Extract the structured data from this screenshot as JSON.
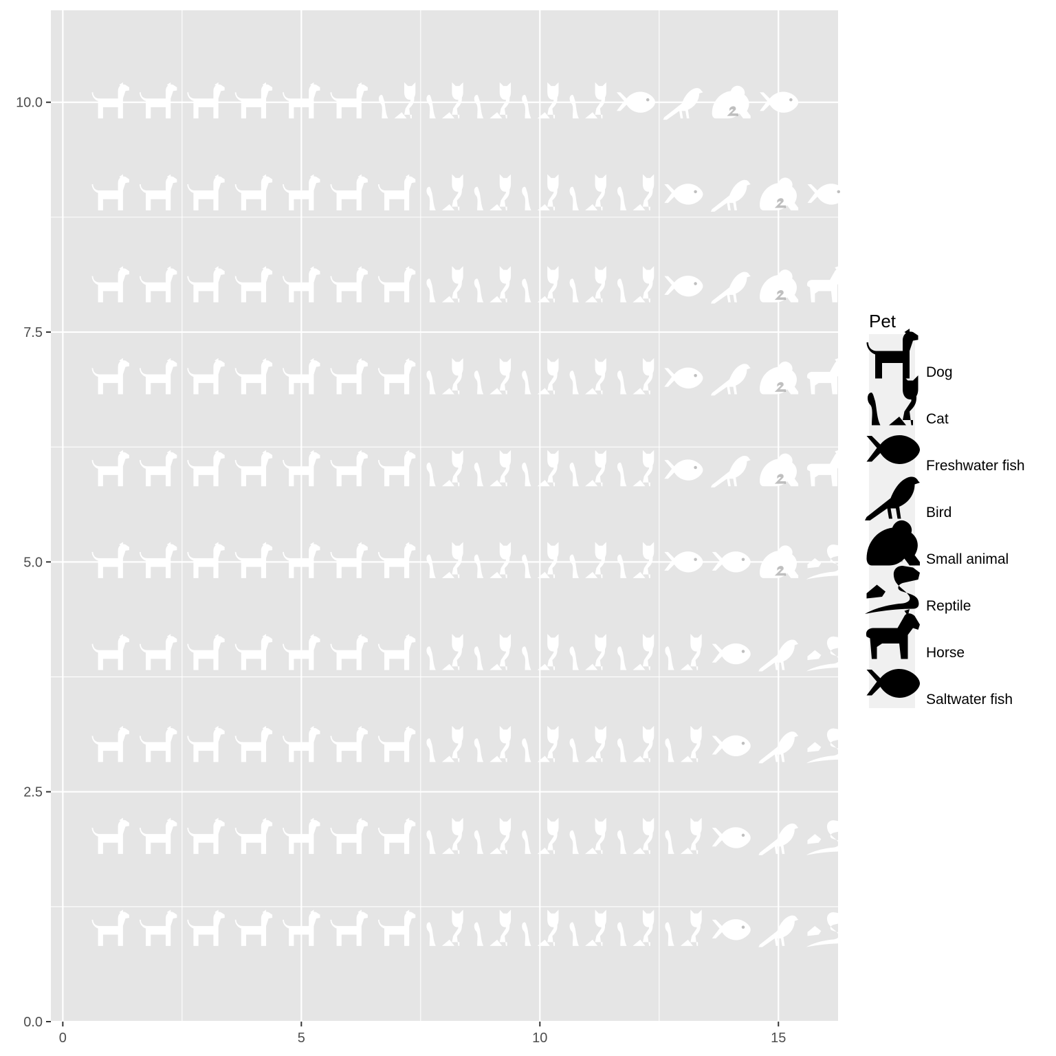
{
  "chart_data": {
    "type": "waffle-pictogram",
    "title": "",
    "xlabel": "",
    "ylabel": "",
    "xlim": [
      -0.25,
      16.25
    ],
    "ylim": [
      0,
      11
    ],
    "x_ticks": [
      0,
      5,
      10,
      15
    ],
    "x_tick_labels": [
      "0",
      "5",
      "10",
      "15"
    ],
    "y_ticks": [
      0,
      2.5,
      5,
      7.5,
      10
    ],
    "y_tick_labels": [
      "0.0",
      "2.5",
      "5.0",
      "7.5",
      "10.0"
    ],
    "grid": true,
    "legend_position": "right",
    "legend": {
      "title": "Pet",
      "entries": [
        {
          "key": "dog",
          "label": "Dog",
          "icon": "dog-icon"
        },
        {
          "key": "cat",
          "label": "Cat",
          "icon": "cat-icon"
        },
        {
          "key": "fresh",
          "label": "Freshwater fish",
          "icon": "fish-icon"
        },
        {
          "key": "bird",
          "label": "Bird",
          "icon": "bird-icon"
        },
        {
          "key": "small",
          "label": "Small animal",
          "icon": "small-animal-icon"
        },
        {
          "key": "reptile",
          "label": "Reptile",
          "icon": "reptile-icon"
        },
        {
          "key": "horse",
          "label": "Horse",
          "icon": "horse-icon"
        },
        {
          "key": "salt",
          "label": "Saltwater fish",
          "icon": "fish-icon"
        }
      ]
    },
    "rows": [
      {
        "y": 1,
        "icons": [
          "dog",
          "dog",
          "dog",
          "dog",
          "dog",
          "dog",
          "dog",
          "cat",
          "cat",
          "cat",
          "cat",
          "cat",
          "cat",
          "fresh",
          "bird",
          "reptile"
        ]
      },
      {
        "y": 2,
        "icons": [
          "dog",
          "dog",
          "dog",
          "dog",
          "dog",
          "dog",
          "dog",
          "cat",
          "cat",
          "cat",
          "cat",
          "cat",
          "cat",
          "fresh",
          "bird",
          "reptile"
        ]
      },
      {
        "y": 3,
        "icons": [
          "dog",
          "dog",
          "dog",
          "dog",
          "dog",
          "dog",
          "dog",
          "cat",
          "cat",
          "cat",
          "cat",
          "cat",
          "cat",
          "fresh",
          "bird",
          "reptile"
        ]
      },
      {
        "y": 4,
        "icons": [
          "dog",
          "dog",
          "dog",
          "dog",
          "dog",
          "dog",
          "dog",
          "cat",
          "cat",
          "cat",
          "cat",
          "cat",
          "cat",
          "fresh",
          "bird",
          "reptile"
        ]
      },
      {
        "y": 5,
        "icons": [
          "dog",
          "dog",
          "dog",
          "dog",
          "dog",
          "dog",
          "dog",
          "cat",
          "cat",
          "cat",
          "cat",
          "cat",
          "fresh",
          "fresh",
          "small",
          "reptile"
        ]
      },
      {
        "y": 6,
        "icons": [
          "dog",
          "dog",
          "dog",
          "dog",
          "dog",
          "dog",
          "dog",
          "cat",
          "cat",
          "cat",
          "cat",
          "cat",
          "fresh",
          "bird",
          "small",
          "horse"
        ]
      },
      {
        "y": 7,
        "icons": [
          "dog",
          "dog",
          "dog",
          "dog",
          "dog",
          "dog",
          "dog",
          "cat",
          "cat",
          "cat",
          "cat",
          "cat",
          "fresh",
          "bird",
          "small",
          "horse"
        ]
      },
      {
        "y": 8,
        "icons": [
          "dog",
          "dog",
          "dog",
          "dog",
          "dog",
          "dog",
          "dog",
          "cat",
          "cat",
          "cat",
          "cat",
          "cat",
          "fresh",
          "bird",
          "small",
          "horse"
        ]
      },
      {
        "y": 9,
        "icons": [
          "dog",
          "dog",
          "dog",
          "dog",
          "dog",
          "dog",
          "dog",
          "cat",
          "cat",
          "cat",
          "cat",
          "cat",
          "fresh",
          "bird",
          "small",
          "salt"
        ]
      },
      {
        "y": 10,
        "icons": [
          "dog",
          "dog",
          "dog",
          "dog",
          "dog",
          "dog",
          "cat",
          "cat",
          "cat",
          "cat",
          "cat",
          "fresh",
          "bird",
          "small",
          "salt"
        ]
      }
    ],
    "colors": {
      "panel_background": "#e5e5e5",
      "grid_line": "#ffffff",
      "icon_fill": "#ffffff",
      "legend_key_background": "#f0f0f0",
      "legend_icon_fill": "#000000",
      "axis_text": "#4d4d4d",
      "tick": "#333333"
    }
  }
}
